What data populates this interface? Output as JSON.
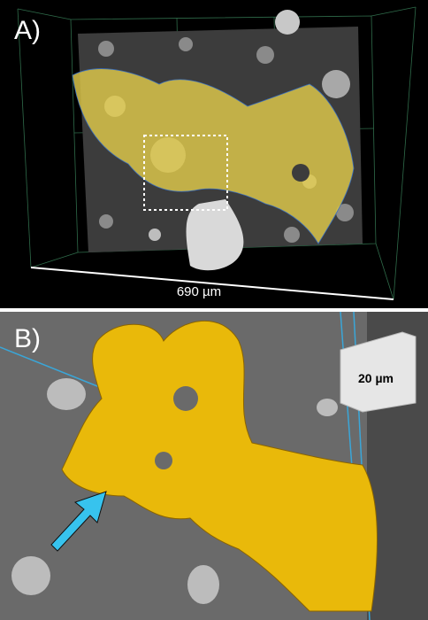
{
  "panels": [
    {
      "label": "A)",
      "scale_label": "690 µm"
    },
    {
      "label": "B)",
      "scale_label": "20 µm"
    }
  ]
}
